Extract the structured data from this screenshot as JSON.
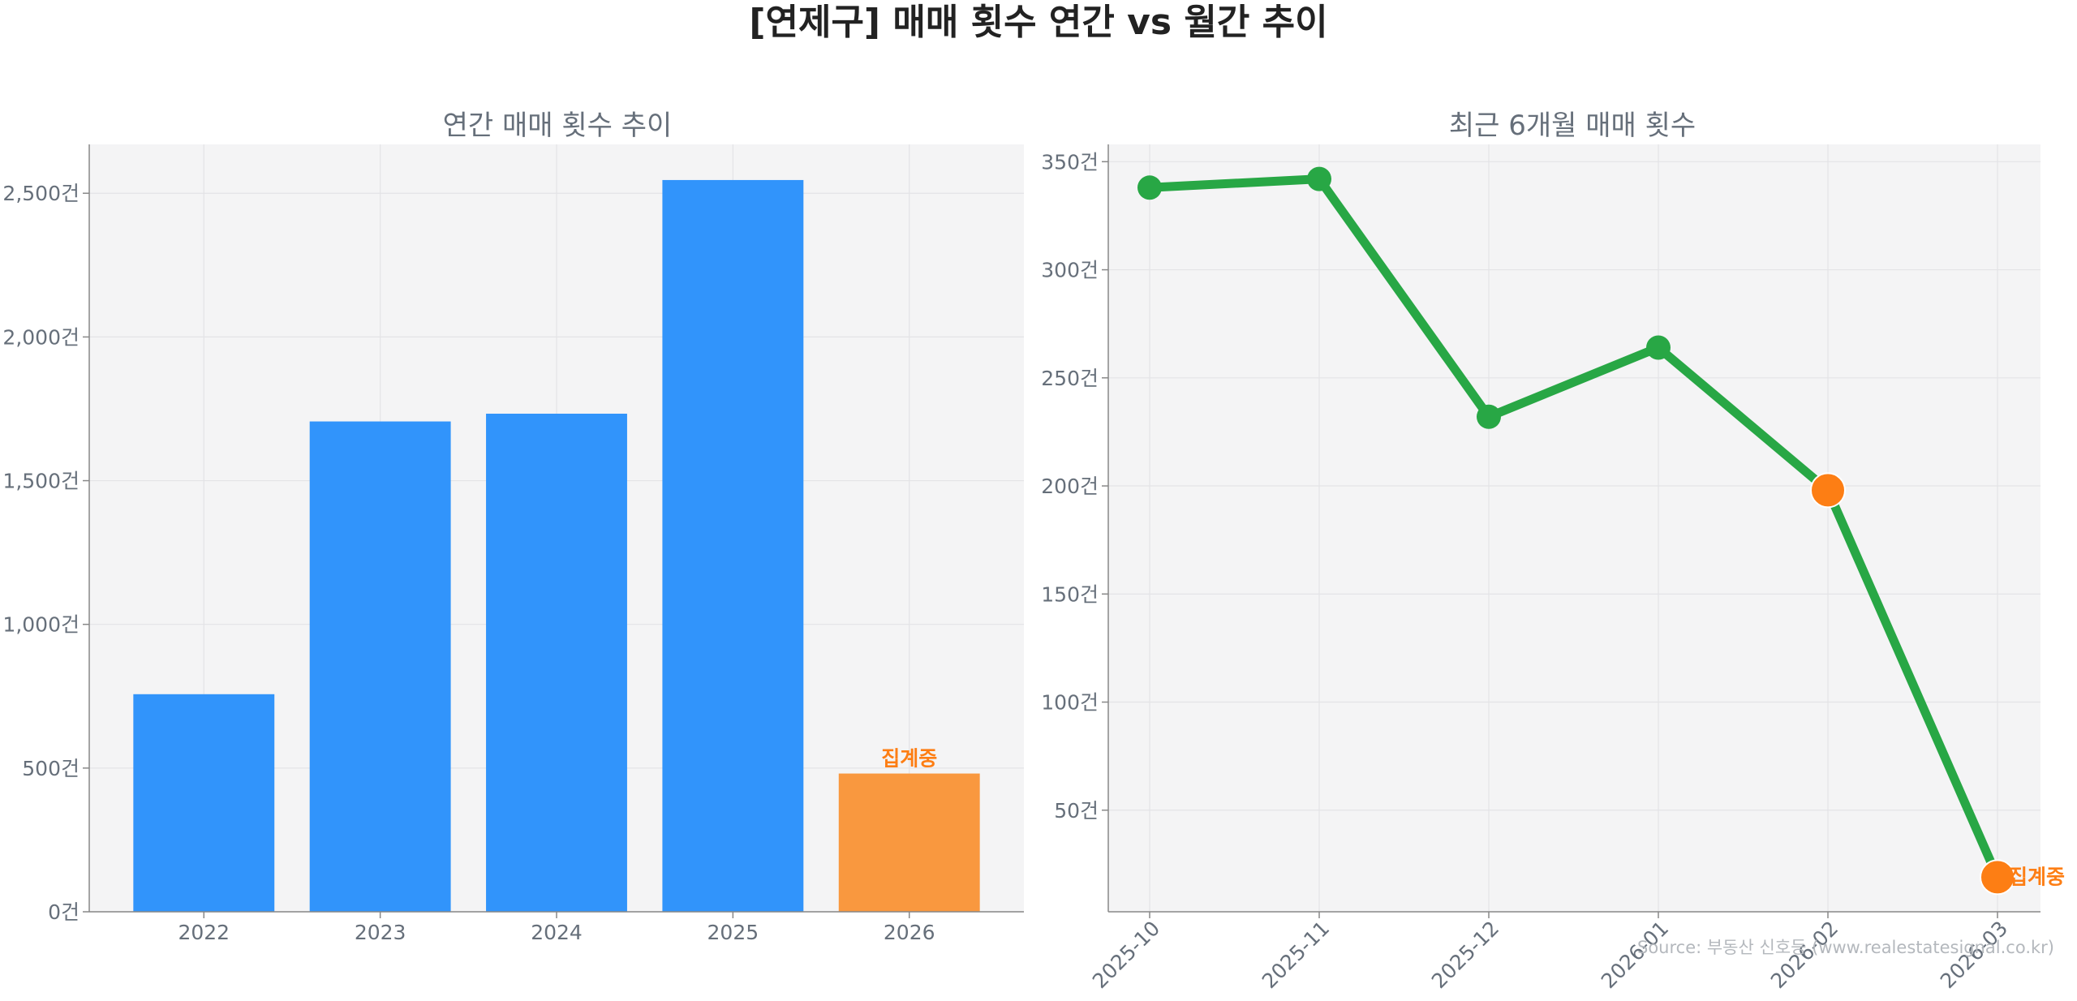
{
  "figure": {
    "title": "[연제구] 매매 횟수 연간 vs 월간 추이",
    "source": "Source: 부동산 신호등 (www.realestatesignal.co.kr)"
  },
  "colors": {
    "bar": "#3194fb",
    "bar_incomplete": "#f9983f",
    "line": "#28a745",
    "point_incomplete": "#fd7e14",
    "annotation": "#fd7e14",
    "panel_bg": "#f4f4f5",
    "grid": "#e3e3e6",
    "axis": "#888888"
  },
  "chart_data": [
    {
      "type": "bar",
      "title": "연간 매매 횟수 추이",
      "categories": [
        "2022",
        "2023",
        "2024",
        "2025",
        "2026"
      ],
      "values": [
        757,
        1706,
        1733,
        2546,
        481
      ],
      "incomplete_index": 4,
      "annotation": "집계중",
      "ylim": [
        0,
        2670
      ],
      "yticks": [
        0,
        500,
        1000,
        1500,
        2000,
        2500
      ],
      "ytick_labels": [
        "0건",
        "500건",
        "1,000건",
        "1,500건",
        "2,000건",
        "2,500건"
      ],
      "grid": true
    },
    {
      "type": "line",
      "title": "최근 6개월 매매 횟수",
      "categories": [
        "2025-10",
        "2025-11",
        "2025-12",
        "2026-01",
        "2026-02",
        "2026-03"
      ],
      "values": [
        338,
        342,
        232,
        264,
        198,
        19
      ],
      "incomplete_indices": [
        4,
        5
      ],
      "annotation": "집계중",
      "annotation_index": 5,
      "ylim": [
        3,
        358
      ],
      "yticks": [
        50,
        100,
        150,
        200,
        250,
        300,
        350
      ],
      "ytick_labels": [
        "50건",
        "100건",
        "150건",
        "200건",
        "250건",
        "300건",
        "350건"
      ],
      "grid": true
    }
  ]
}
